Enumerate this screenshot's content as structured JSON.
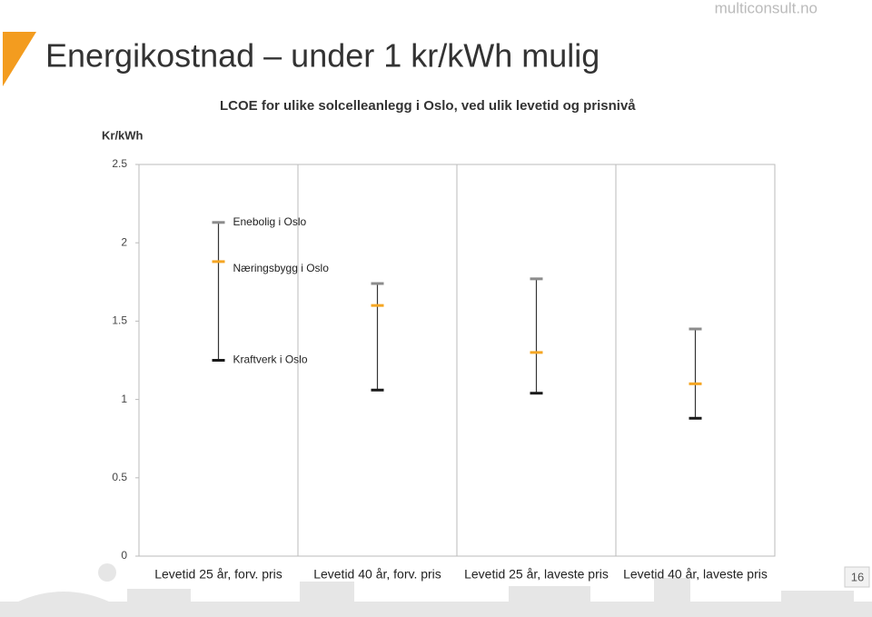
{
  "brand": "multiconsult.no",
  "page_number": "16",
  "chart_data": {
    "type": "hilo",
    "title": "Energikostnad – under 1 kr/kWh mulig",
    "subtitle": "LCOE for ulike solcelleanlegg i Oslo, ved ulik levetid og prisnivå",
    "ylabel": "Kr/kWh",
    "categories": [
      "Levetid 25 år, forv. pris",
      "Levetid 40 år, forv. pris",
      "Levetid 25 år, laveste pris",
      "Levetid 40 år, laveste pris"
    ],
    "series": [
      {
        "name": "Enebolig i Oslo",
        "color": "#8c8c8c",
        "values": [
          2.13,
          1.74,
          1.77,
          1.45
        ]
      },
      {
        "name": "Næringsbygg i Oslo",
        "color": "#f5a623",
        "values": [
          1.88,
          1.6,
          1.3,
          1.1
        ]
      },
      {
        "name": "Kraftverk i Oslo",
        "color": "#1a1a1a",
        "values": [
          1.25,
          1.06,
          1.04,
          0.88
        ]
      }
    ],
    "ylim": [
      0,
      2.5
    ],
    "yticks": [
      0,
      0.5,
      1,
      1.5,
      2,
      2.5
    ],
    "vertical_grid": true
  }
}
